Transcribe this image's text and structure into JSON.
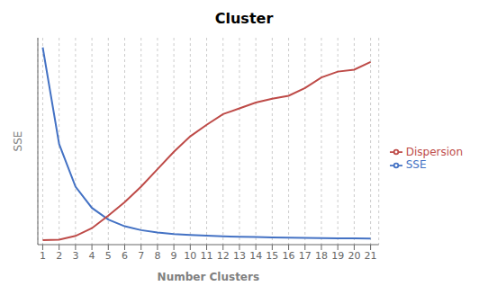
{
  "chart_data": {
    "type": "line",
    "title": "Cluster",
    "xlabel": "Number Clusters",
    "ylabel": "SSE",
    "x": [
      1,
      2,
      3,
      4,
      5,
      6,
      7,
      8,
      9,
      10,
      11,
      12,
      13,
      14,
      15,
      16,
      17,
      18,
      19,
      20,
      21
    ],
    "series": [
      {
        "name": "SSE",
        "color": "#4472C4",
        "values": [
          1.0,
          0.5,
          0.28,
          0.17,
          0.11,
          0.075,
          0.055,
          0.043,
          0.035,
          0.03,
          0.026,
          0.023,
          0.021,
          0.019,
          0.017,
          0.016,
          0.015,
          0.014,
          0.013,
          0.012,
          0.011
        ]
      },
      {
        "name": "Dispersion",
        "color": "#BE4B48",
        "values": [
          0.003,
          0.006,
          0.025,
          0.065,
          0.13,
          0.2,
          0.28,
          0.37,
          0.46,
          0.54,
          0.6,
          0.655,
          0.685,
          0.715,
          0.735,
          0.75,
          0.79,
          0.845,
          0.875,
          0.885,
          0.925
        ]
      }
    ],
    "xlim": [
      0.7,
      21.5
    ],
    "xticks": [
      1,
      2,
      3,
      4,
      5,
      6,
      7,
      8,
      9,
      10,
      11,
      12,
      13,
      14,
      15,
      16,
      17,
      18,
      19,
      20,
      21
    ],
    "ylim": [
      -0.02,
      1.05
    ],
    "yticks": [],
    "tick_labels": "x",
    "grid": true,
    "legend": "right"
  }
}
